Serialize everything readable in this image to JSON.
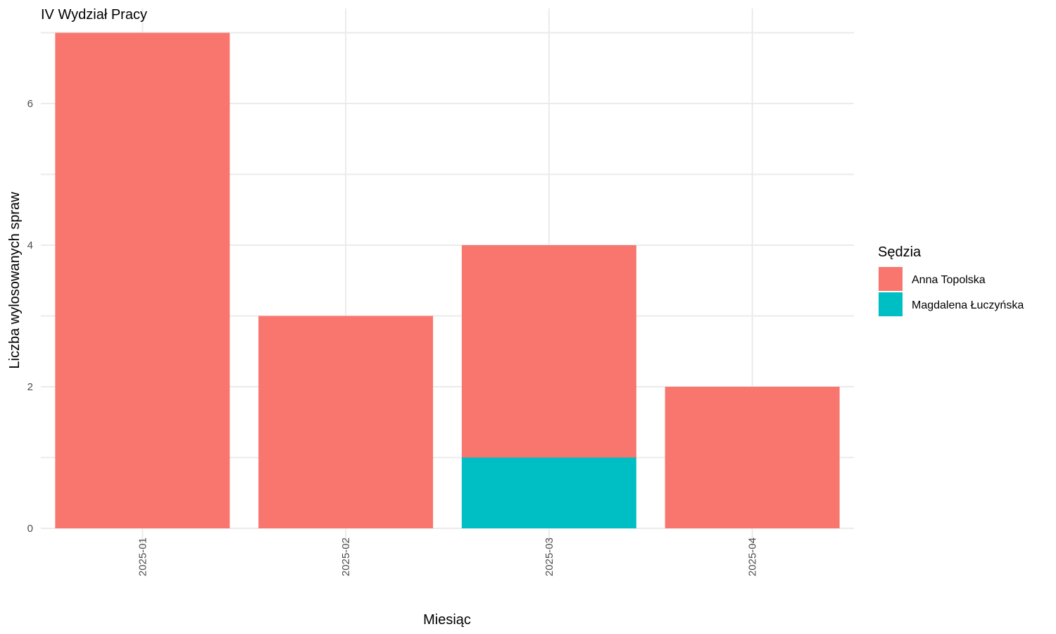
{
  "chart_data": {
    "type": "bar",
    "stacked": true,
    "title": "IV Wydział Pracy",
    "xlabel": "Miesiąc",
    "ylabel": "Liczba wylosowanych spraw",
    "categories": [
      "2025-01",
      "2025-02",
      "2025-03",
      "2025-04"
    ],
    "series": [
      {
        "name": "Magdalena Łuczyńska",
        "color": "#00BFC4",
        "values": [
          0,
          0,
          1,
          0
        ]
      },
      {
        "name": "Anna Topolska",
        "color": "#F8766D",
        "values": [
          7,
          3,
          3,
          2
        ]
      }
    ],
    "ylim": [
      0,
      7
    ],
    "yticks": [
      0,
      2,
      4,
      6
    ],
    "grid": true,
    "legend": {
      "title": "Sędzia",
      "placement": "right",
      "items": [
        {
          "label": "Anna Topolska",
          "color": "#F8766D"
        },
        {
          "label": "Magdalena Łuczyńska",
          "color": "#00BFC4"
        }
      ]
    }
  }
}
